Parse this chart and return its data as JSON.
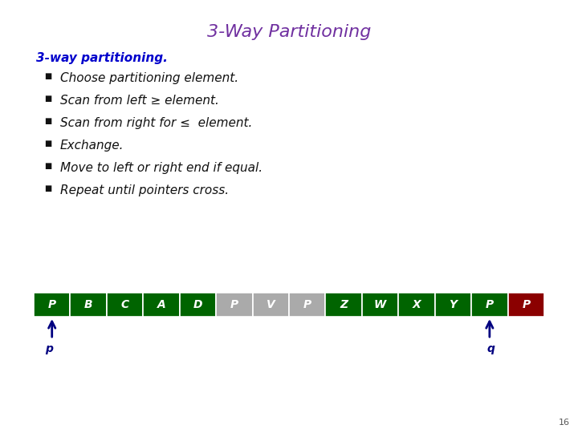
{
  "title": "3-Way Partitioning",
  "title_color": "#7030A0",
  "title_fontsize": 16,
  "subtitle": "3-way partitioning.",
  "subtitle_color": "#0000CC",
  "subtitle_fontsize": 11,
  "bullets": [
    "Choose partitioning element.",
    "Scan from left ≥ element.",
    "Scan from right for ≤  element.",
    "Exchange.",
    "Move to left or right end if equal.",
    "Repeat until pointers cross."
  ],
  "bullet_fontsize": 11,
  "bullet_color": "#111111",
  "array_labels": [
    "P",
    "B",
    "C",
    "A",
    "D",
    "P",
    "V",
    "P",
    "Z",
    "W",
    "X",
    "Y",
    "P",
    "P"
  ],
  "array_colors": [
    "#006400",
    "#006400",
    "#006400",
    "#006400",
    "#006400",
    "#AAAAAA",
    "#AAAAAA",
    "#AAAAAA",
    "#006400",
    "#006400",
    "#006400",
    "#006400",
    "#006400",
    "#8B0000"
  ],
  "array_text_color": "#FFFFFF",
  "pointer_p_index": 0,
  "pointer_q_index": 12,
  "pointer_color": "#000080",
  "pointer_label_color": "#000080",
  "bg_color": "#FFFFFF",
  "page_number": "16"
}
